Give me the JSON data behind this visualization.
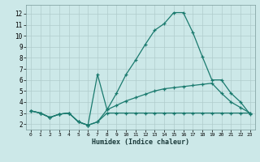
{
  "xlabel": "Humidex (Indice chaleur)",
  "background_color": "#cce8e8",
  "grid_color": "#b0cccc",
  "line_color": "#1a7a6e",
  "xlim": [
    -0.5,
    23.5
  ],
  "ylim": [
    1.5,
    12.8
  ],
  "yticks": [
    2,
    3,
    4,
    5,
    6,
    7,
    8,
    9,
    10,
    11,
    12
  ],
  "xticks": [
    0,
    1,
    2,
    3,
    4,
    5,
    6,
    7,
    8,
    9,
    10,
    11,
    12,
    13,
    14,
    15,
    16,
    17,
    18,
    19,
    20,
    21,
    22,
    23
  ],
  "line1_x": [
    0,
    1,
    2,
    3,
    4,
    5,
    6,
    7,
    8,
    9,
    10,
    11,
    12,
    13,
    14,
    15,
    16,
    17,
    18,
    19,
    20,
    21,
    22,
    23
  ],
  "line1_y": [
    3.2,
    3.0,
    2.6,
    2.9,
    3.0,
    2.2,
    1.9,
    2.2,
    3.0,
    3.0,
    3.0,
    3.0,
    3.0,
    3.0,
    3.0,
    3.0,
    3.0,
    3.0,
    3.0,
    3.0,
    3.0,
    3.0,
    3.0,
    3.0
  ],
  "line2_x": [
    0,
    1,
    2,
    3,
    4,
    5,
    6,
    7,
    8,
    9,
    10,
    11,
    12,
    13,
    14,
    15,
    16,
    17,
    18,
    19,
    20,
    21,
    22,
    23
  ],
  "line2_y": [
    3.2,
    3.0,
    2.6,
    2.9,
    3.0,
    2.2,
    1.9,
    2.2,
    3.3,
    3.7,
    4.1,
    4.4,
    4.7,
    5.0,
    5.2,
    5.3,
    5.4,
    5.5,
    5.6,
    5.7,
    4.8,
    4.0,
    3.5,
    3.0
  ],
  "line3_x": [
    0,
    1,
    2,
    3,
    4,
    5,
    6,
    7,
    8,
    9,
    10,
    11,
    12,
    13,
    14,
    15,
    16,
    17,
    18,
    19,
    20,
    21,
    22,
    23
  ],
  "line3_y": [
    3.2,
    3.0,
    2.6,
    2.9,
    3.0,
    2.2,
    1.9,
    6.5,
    3.3,
    4.8,
    6.5,
    7.8,
    9.2,
    10.5,
    11.1,
    12.1,
    12.1,
    10.3,
    8.1,
    6.0,
    6.0,
    4.8,
    4.0,
    2.9
  ]
}
